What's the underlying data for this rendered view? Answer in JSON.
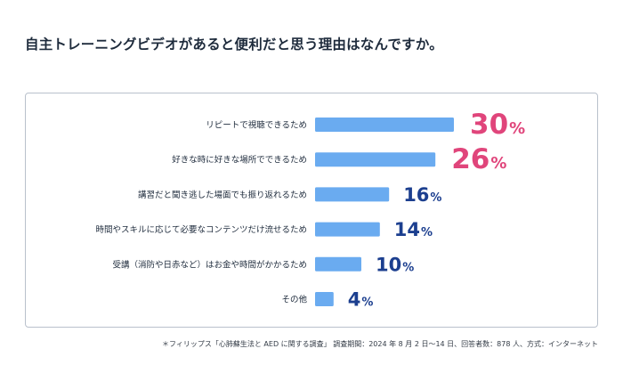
{
  "title": "自主トレーニングビデオがあると便利だと思う理由はなんですか。",
  "footnote": "＊フィリップス「心肺蘇生法と AED に関する調査」 調査期間：2024 年 8 月 2 日～14 日、回答者数：878 人、方式：インターネット",
  "colors": {
    "bar": "#6aabf0",
    "highlight_value": "#e0457b",
    "normal_value": "#1c3f8f",
    "label": "#1e2b3c",
    "border": "#b9c1cc"
  },
  "chart_data": {
    "type": "bar",
    "orientation": "horizontal",
    "unit": "%",
    "categories": [
      "リピートで視聴できるため",
      "好きな時に好きな場所でできるため",
      "講習だと聞き逃した場面でも振り返れるため",
      "時間やスキルに応じて必要なコンテンツだけ流せるため",
      "受講（消防や日赤など）はお金や時間がかかるため",
      "その他"
    ],
    "values": [
      30,
      26,
      16,
      14,
      10,
      4
    ],
    "highlighted": [
      true,
      true,
      false,
      false,
      false,
      false
    ],
    "xlim": [
      0,
      30
    ],
    "grid": false,
    "legend": "none"
  }
}
